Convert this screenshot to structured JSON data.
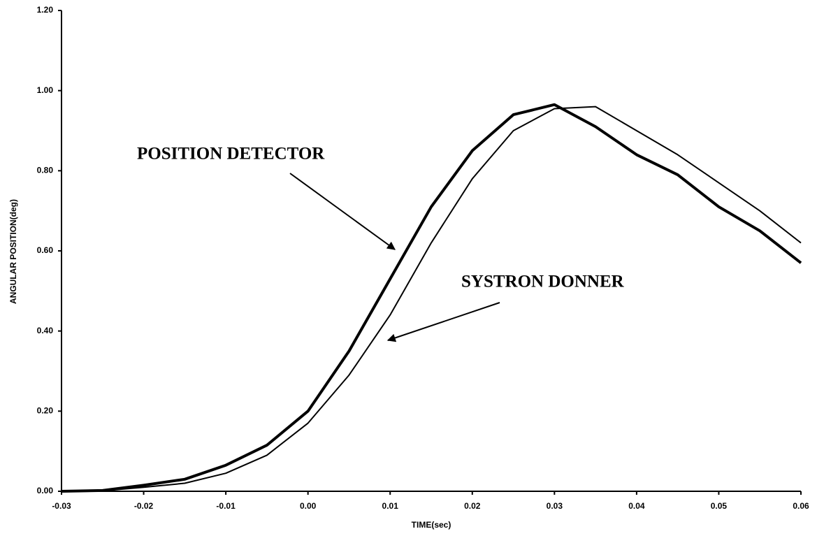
{
  "chart_data": {
    "type": "line",
    "x_label": "TIME(sec)",
    "y_label": "ANGULAR POSITION(deg)",
    "annotations": [
      "POSITION DETECTOR",
      "SYSTRON DONNER"
    ],
    "x": [
      -0.03,
      -0.025,
      -0.02,
      -0.015,
      -0.01,
      -0.005,
      0,
      0.005,
      0.01,
      0.015,
      0.02,
      0.025,
      0.03,
      0.035,
      0.04,
      0.045,
      0.05,
      0.055,
      0.06
    ],
    "series": [
      {
        "name": "POSITION DETECTOR",
        "color": "#000000",
        "values": [
          0,
          0.002,
          0.015,
          0.03,
          0.065,
          0.115,
          0.2,
          0.35,
          0.53,
          0.71,
          0.85,
          0.94,
          0.965,
          0.91,
          0.84,
          0.79,
          0.71,
          0.65,
          0.57
        ]
      },
      {
        "name": "SYSTRON DONNER",
        "color": "#000000",
        "values": [
          0,
          0.001,
          0.01,
          0.02,
          0.045,
          0.09,
          0.17,
          0.29,
          0.44,
          0.62,
          0.78,
          0.9,
          0.955,
          0.96,
          0.9,
          0.84,
          0.77,
          0.7,
          0.62
        ]
      }
    ],
    "xlim": [
      -0.03,
      0.06
    ],
    "xticks": [
      {
        "value": -0.03,
        "label": "-0.03"
      },
      {
        "value": -0.02,
        "label": "-0.02"
      },
      {
        "value": -0.01,
        "label": "-0.01"
      },
      {
        "value": 0,
        "label": "0.00"
      },
      {
        "value": 0.01,
        "label": "0.01"
      },
      {
        "value": 0.02,
        "label": "0.02"
      },
      {
        "value": 0.03,
        "label": "0.03"
      },
      {
        "value": 0.04,
        "label": "0.04"
      },
      {
        "value": 0.05,
        "label": "0.05"
      },
      {
        "value": 0.06,
        "label": "0.06"
      }
    ],
    "ylim": [
      0,
      1.2
    ],
    "yticks": [
      {
        "value": 0,
        "label": "0.00"
      },
      {
        "value": 0.2,
        "label": "0.20"
      },
      {
        "value": 0.4,
        "label": "0.40"
      },
      {
        "value": 0.6,
        "label": "0.60"
      },
      {
        "value": 0.8,
        "label": "0.80"
      },
      {
        "value": 1,
        "label": "1.00"
      },
      {
        "value": 1.2,
        "label": "1.20"
      }
    ],
    "grid": false
  }
}
